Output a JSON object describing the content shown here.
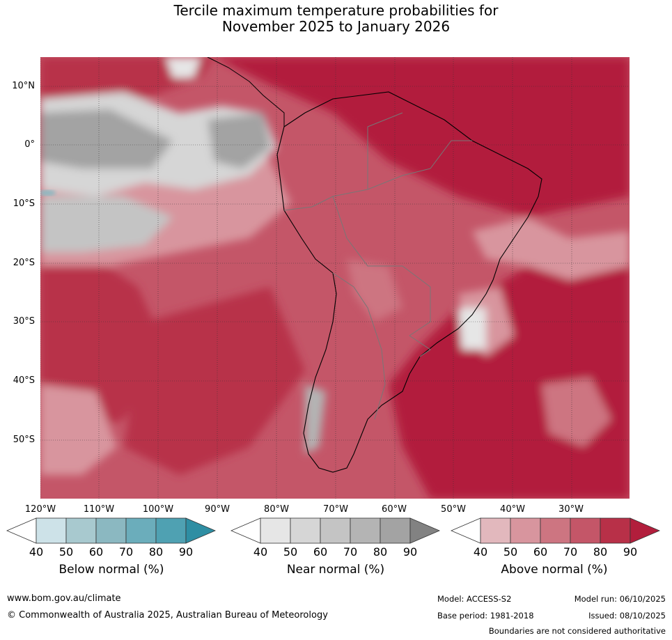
{
  "title": {
    "line1": "Tercile maximum temperature probabilities for",
    "line2": "November 2025 to January 2026"
  },
  "map": {
    "latitude_labels": [
      "10°N",
      "0°",
      "10°S",
      "20°S",
      "30°S",
      "40°S",
      "50°S"
    ],
    "longitude_labels": [
      "120°W",
      "110°W",
      "100°W",
      "90°W",
      "80°W",
      "70°W",
      "60°W",
      "50°W",
      "40°W",
      "30°W"
    ]
  },
  "colorbars": {
    "below": {
      "title": "Below normal (%)",
      "ticks": [
        "40",
        "50",
        "60",
        "70",
        "80",
        "90"
      ],
      "colors": [
        "#ffffff",
        "#cde2e8",
        "#a8c9cf",
        "#8bb8c1",
        "#6badbb",
        "#4fa1b2",
        "#2e8ea3"
      ]
    },
    "near": {
      "title": "Near normal (%)",
      "ticks": [
        "40",
        "50",
        "60",
        "70",
        "80",
        "90"
      ],
      "colors": [
        "#ffffff",
        "#e6e6e6",
        "#d6d6d6",
        "#c4c4c4",
        "#b4b4b4",
        "#a3a3a3",
        "#828282"
      ]
    },
    "above": {
      "title": "Above normal (%)",
      "ticks": [
        "40",
        "50",
        "60",
        "70",
        "80",
        "90"
      ],
      "colors": [
        "#ffffff",
        "#e2b8bd",
        "#d8959e",
        "#cd7581",
        "#c45668",
        "#b83048",
        "#b21e3c"
      ]
    }
  },
  "footer": {
    "website": "www.bom.gov.au/climate",
    "copyright": "© Commonwealth of Australia 2025, Australian Bureau of Meteorology",
    "model": "Model: ACCESS-S2",
    "base_period": "Base period: 1981-2018",
    "model_run": "Model run: 06/10/2025",
    "issued": "Issued: 08/10/2025",
    "disclaimer": "Boundaries are not considered authoritative"
  }
}
